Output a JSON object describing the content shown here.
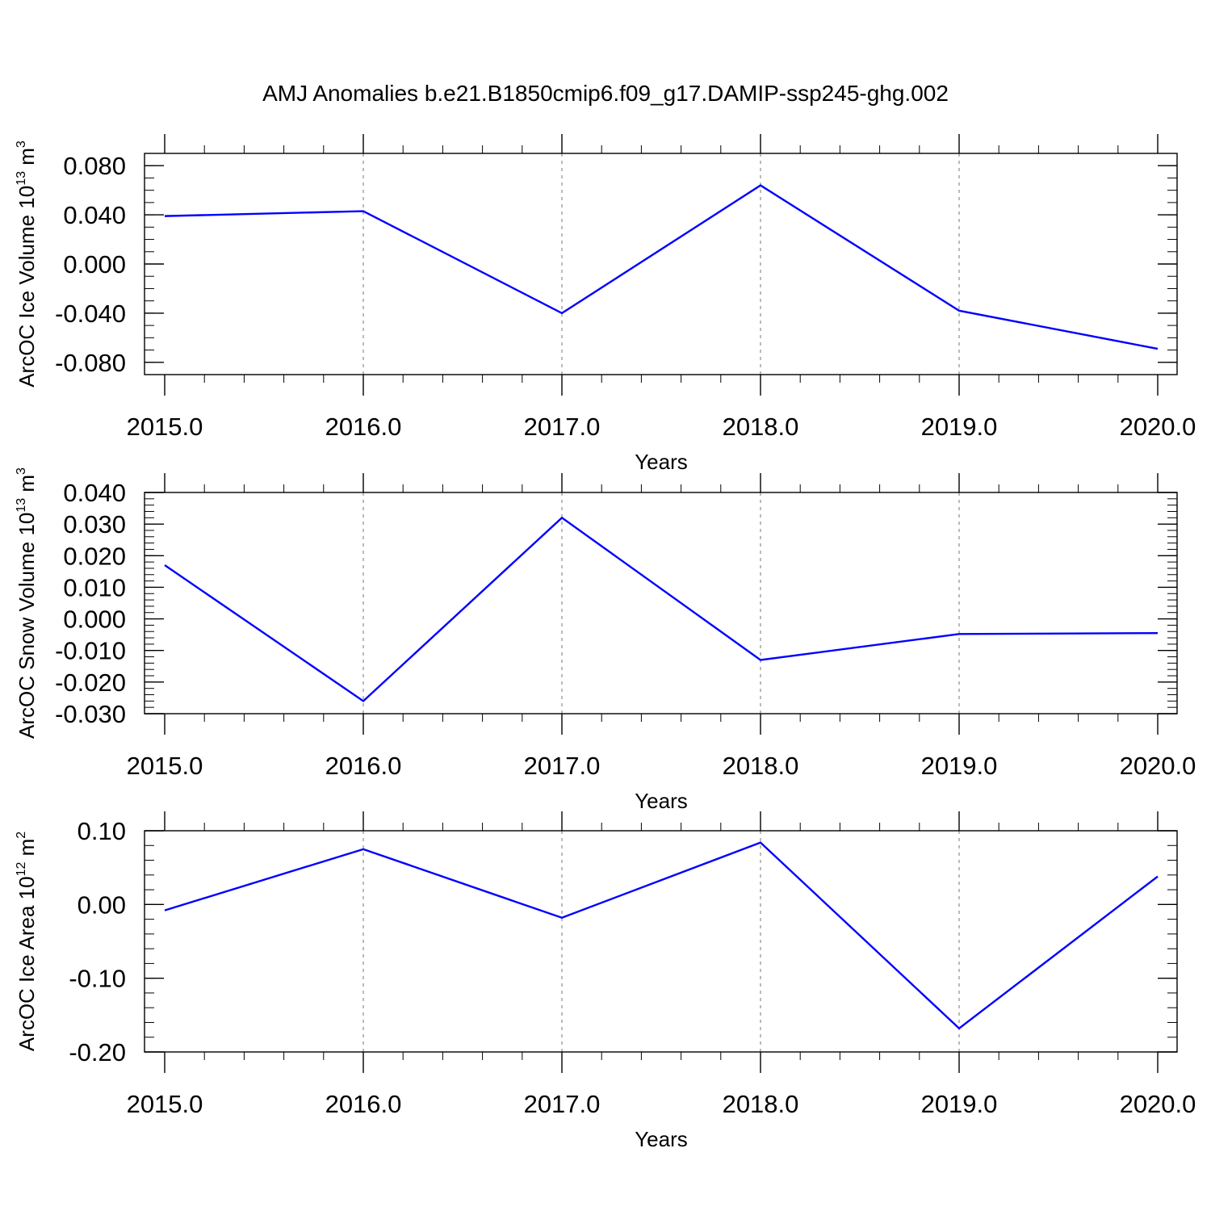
{
  "title": "AMJ Anomalies b.e21.B1850cmip6.f09_g17.DAMIP-ssp245-ghg.002",
  "colors": {
    "series": "#0000ff",
    "axes": "#000000",
    "grid": "#8c8c8c"
  },
  "chart_data": [
    {
      "type": "line",
      "ylabel": {
        "prefix": "ArcOC Ice Volume 10",
        "exp": "13",
        "unit": " m",
        "unit_exp": "3"
      },
      "xlabel": "Years",
      "x": [
        2015,
        2016,
        2017,
        2018,
        2019,
        2020
      ],
      "series": [
        {
          "values": [
            0.039,
            0.043,
            -0.04,
            0.064,
            -0.038,
            -0.069
          ]
        }
      ],
      "xlim": [
        2015,
        2020
      ],
      "ylim": [
        -0.09,
        0.09
      ],
      "yticks": [
        0.08,
        0.04,
        0.0,
        -0.04,
        -0.08
      ],
      "ytick_labels": [
        "0.080",
        "0.040",
        "0.000",
        "-0.040",
        "-0.080"
      ],
      "y_minor_step": 0.01,
      "xticks": [
        2015,
        2016,
        2017,
        2018,
        2019,
        2020
      ],
      "xtick_labels": [
        "2015.0",
        "2016.0",
        "2017.0",
        "2018.0",
        "2019.0",
        "2020.0"
      ],
      "grid": "vertical dashed at major x ticks"
    },
    {
      "type": "line",
      "ylabel": {
        "prefix": "ArcOC Snow Volume 10",
        "exp": "13",
        "unit": " m",
        "unit_exp": "3"
      },
      "xlabel": "Years",
      "x": [
        2015,
        2016,
        2017,
        2018,
        2019,
        2020
      ],
      "series": [
        {
          "values": [
            0.017,
            -0.026,
            0.032,
            -0.013,
            -0.0048,
            -0.0045
          ]
        }
      ],
      "xlim": [
        2015,
        2020
      ],
      "ylim": [
        -0.03,
        0.04
      ],
      "yticks": [
        0.04,
        0.03,
        0.02,
        0.01,
        0.0,
        -0.01,
        -0.02,
        -0.03
      ],
      "ytick_labels": [
        "0.040",
        "0.030",
        "0.020",
        "0.010",
        "0.000",
        "-0.010",
        "-0.020",
        "-0.030"
      ],
      "y_minor_step": 0.002,
      "xticks": [
        2015,
        2016,
        2017,
        2018,
        2019,
        2020
      ],
      "xtick_labels": [
        "2015.0",
        "2016.0",
        "2017.0",
        "2018.0",
        "2019.0",
        "2020.0"
      ],
      "grid": "vertical dashed at major x ticks"
    },
    {
      "type": "line",
      "ylabel": {
        "prefix": "ArcOC Ice Area 10",
        "exp": "12",
        "unit": " m",
        "unit_exp": "2"
      },
      "xlabel": "Years",
      "x": [
        2015,
        2016,
        2017,
        2018,
        2019,
        2020
      ],
      "series": [
        {
          "values": [
            -0.008,
            0.075,
            -0.018,
            0.084,
            -0.168,
            0.038
          ]
        }
      ],
      "xlim": [
        2015,
        2020
      ],
      "ylim": [
        -0.2,
        0.1
      ],
      "yticks": [
        0.1,
        0.0,
        -0.1,
        -0.2
      ],
      "ytick_labels": [
        "0.10",
        "0.00",
        "-0.10",
        "-0.20"
      ],
      "y_minor_step": 0.02,
      "xticks": [
        2015,
        2016,
        2017,
        2018,
        2019,
        2020
      ],
      "xtick_labels": [
        "2015.0",
        "2016.0",
        "2017.0",
        "2018.0",
        "2019.0",
        "2020.0"
      ],
      "grid": "vertical dashed at major x ticks"
    }
  ]
}
